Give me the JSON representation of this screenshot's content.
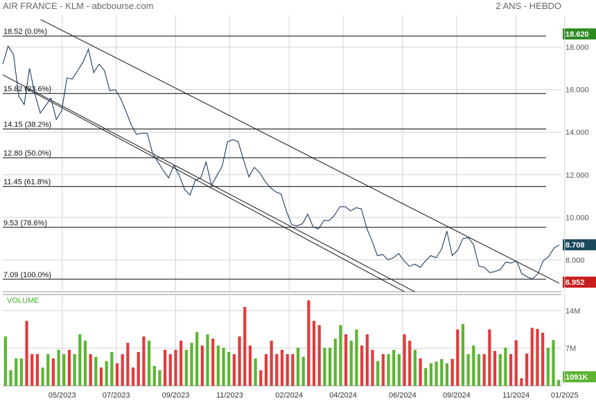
{
  "header": {
    "title": "AIR FRANCE - KLM - abcbourse.com",
    "period": "2 ANS - HEBDO"
  },
  "colors": {
    "price_line": "#1f3a5f",
    "grid": "#cfd3d8",
    "up": "#5cb531",
    "down": "#e03c3c",
    "volume_label": "#42b12f",
    "badge_high": "#2e8b22",
    "badge_last": "#1c4a5c",
    "badge_low": "#c81d1d"
  },
  "chart_data": [
    {
      "type": "line",
      "title": "",
      "ylim": [
        6.5,
        19.5
      ],
      "x_range": [
        0,
        103
      ],
      "yticks": [
        8.0,
        10.0,
        12.0,
        14.0,
        16.0,
        18.0
      ],
      "ytick_labels": [
        "8.000",
        "10.000",
        "12.000",
        "14.000",
        "16.000",
        "18.000"
      ],
      "xtick_positions": [
        11,
        21,
        32,
        42,
        53,
        63,
        74,
        84,
        95,
        104
      ],
      "xtick_labels": [
        "05/2023",
        "07/2023",
        "09/2023",
        "11/2023",
        "02/2024",
        "04/2024",
        "06/2024",
        "09/2024",
        "11/2024",
        "01/2025"
      ],
      "badges": {
        "high": "18.620",
        "last": "8.708",
        "low": "6.952"
      },
      "fibonacci": [
        {
          "label": "18.52  (0.0%)",
          "value": 18.52
        },
        {
          "label": "15.82  (23.6%)",
          "value": 15.82
        },
        {
          "label": "14.15  (38.2%)",
          "value": 14.15
        },
        {
          "label": "12.80  (50.0%)",
          "value": 12.8
        },
        {
          "label": "11.45  (61.8%)",
          "value": 11.45
        },
        {
          "label": "9.53  (78.6%)",
          "value": 9.53
        },
        {
          "label": "7.09  (100.0%)",
          "value": 7.09
        }
      ],
      "trendlines": [
        {
          "x1": 7,
          "y1": 19.3,
          "x2": 103,
          "y2": 6.9
        },
        {
          "x1": 0,
          "y1": 16.7,
          "x2": 80,
          "y2": 6.0
        },
        {
          "x1": 4,
          "y1": 16.1,
          "x2": 78,
          "y2": 6.0
        }
      ],
      "series": [
        {
          "values": [
            17.2,
            18.05,
            17.65,
            15.7,
            15.3,
            17.0,
            15.8,
            14.9,
            15.25,
            15.6,
            14.6,
            15.0,
            16.55,
            16.5,
            16.9,
            17.3,
            17.9,
            16.8,
            17.2,
            16.9,
            15.95,
            16.0,
            15.6,
            15.0,
            14.35,
            13.9,
            13.95,
            13.95,
            13.0,
            12.6,
            12.2,
            11.85,
            12.45,
            11.95,
            11.3,
            11.05,
            11.75,
            11.85,
            12.6,
            11.5,
            11.95,
            12.4,
            13.55,
            13.65,
            13.55,
            12.7,
            11.9,
            12.35,
            12.1,
            11.7,
            11.4,
            11.2,
            11.1,
            10.3,
            9.65,
            9.6,
            9.7,
            10.15,
            9.55,
            9.45,
            9.85,
            9.85,
            10.1,
            10.5,
            10.5,
            10.3,
            10.45,
            10.4,
            9.5,
            8.9,
            8.2,
            8.25,
            8.0,
            8.1,
            8.3,
            7.95,
            7.7,
            7.8,
            7.65,
            7.95,
            8.2,
            8.1,
            8.5,
            9.35,
            8.2,
            8.45,
            9.0,
            9.05,
            8.7,
            7.7,
            7.65,
            7.4,
            7.45,
            7.55,
            7.9,
            7.85,
            7.95,
            7.35,
            7.2,
            7.1,
            7.35,
            7.95,
            8.15,
            8.55,
            8.708
          ]
        }
      ]
    },
    {
      "type": "bar",
      "title": "VOLUME",
      "ylim": [
        0,
        17
      ],
      "yticks": [
        7,
        14
      ],
      "ytick_labels": [
        "7M",
        "14M"
      ],
      "last_label": "1091K",
      "volumes": [
        9.2,
        2.9,
        5.1,
        5.1,
        12.1,
        5.9,
        5.9,
        3.4,
        5.9,
        5.1,
        6.7,
        5.9,
        6.7,
        5.9,
        9.6,
        8.4,
        5.9,
        5.4,
        3.4,
        4.6,
        6.3,
        4.2,
        5.9,
        8.0,
        3.4,
        6.3,
        9.2,
        8.4,
        3.7,
        2.9,
        6.7,
        5.9,
        6.7,
        8.4,
        6.7,
        8.0,
        10.0,
        7.5,
        9.6,
        8.8,
        7.5,
        7.1,
        6.3,
        5.9,
        9.2,
        14.7,
        7.5,
        5.1,
        2.9,
        5.9,
        8.4,
        5.9,
        6.7,
        5.9,
        5.9,
        7.1,
        5.4,
        15.9,
        12.1,
        11.3,
        7.1,
        7.1,
        8.8,
        11.3,
        9.6,
        8.4,
        10.5,
        7.5,
        9.6,
        6.7,
        4.6,
        5.9,
        5.9,
        6.7,
        5.9,
        9.6,
        8.4,
        6.7,
        5.1,
        3.3,
        4.2,
        4.5,
        5.0,
        4.2,
        5.0,
        10.5,
        11.5,
        5.9,
        7.5,
        5.9,
        5.9,
        10.5,
        6.5,
        5.9,
        7.1,
        5.9,
        8.5,
        1.4,
        6.0,
        10.8,
        10.6,
        9.9,
        7.1,
        8.5,
        1.1
      ],
      "up": [
        1,
        1,
        1,
        1,
        0,
        0,
        0,
        1,
        1,
        0,
        1,
        1,
        0,
        1,
        1,
        1,
        0,
        1,
        0,
        1,
        1,
        0,
        0,
        0,
        0,
        0,
        0,
        1,
        1,
        1,
        0,
        0,
        0,
        0,
        1,
        1,
        1,
        0,
        1,
        0,
        1,
        1,
        1,
        0,
        0,
        0,
        0,
        1,
        0,
        0,
        0,
        0,
        0,
        0,
        0,
        1,
        1,
        0,
        0,
        0,
        1,
        1,
        1,
        1,
        0,
        1,
        1,
        0,
        0,
        0,
        1,
        0,
        1,
        1,
        1,
        0,
        0,
        1,
        0,
        1,
        1,
        1,
        1,
        1,
        0,
        0,
        1,
        1,
        1,
        1,
        0,
        0,
        0,
        1,
        1,
        0,
        0,
        0,
        0,
        0,
        0,
        0,
        1,
        1,
        1
      ]
    }
  ]
}
